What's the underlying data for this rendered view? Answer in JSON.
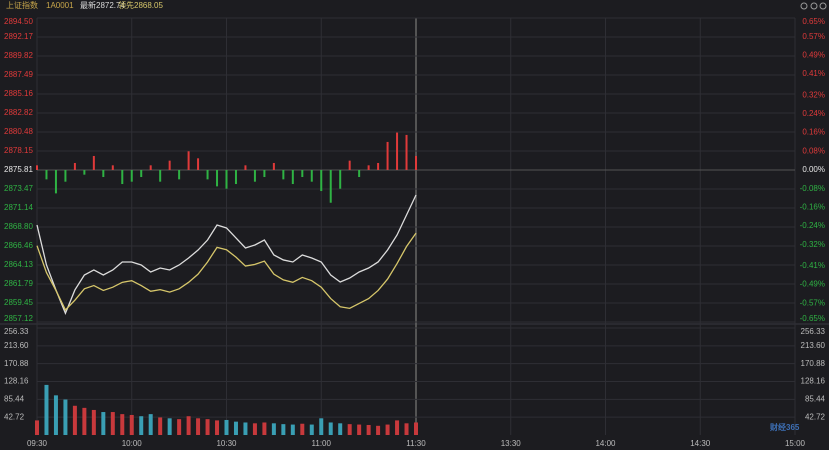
{
  "header": {
    "name": "上证指数",
    "code": "1A0001",
    "latest": "最新2872.74",
    "lead": "领先2868.05"
  },
  "watermark": "财经365",
  "chart_data": [
    {
      "type": "line",
      "x": [
        "09:30",
        "09:33",
        "09:36",
        "09:39",
        "09:42",
        "09:45",
        "09:48",
        "09:51",
        "09:54",
        "09:57",
        "10:00",
        "10:03",
        "10:06",
        "10:09",
        "10:12",
        "10:15",
        "10:18",
        "10:21",
        "10:24",
        "10:27",
        "10:30",
        "10:33",
        "10:36",
        "10:39",
        "10:42",
        "10:45",
        "10:48",
        "10:51",
        "10:54",
        "10:57",
        "11:00",
        "11:03",
        "11:06",
        "11:09",
        "11:12",
        "11:15",
        "11:18",
        "11:21",
        "11:24",
        "11:27",
        "11:30"
      ],
      "series": [
        {
          "color": "#dcdcdc",
          "values": [
            2869.05,
            2864.13,
            2861.06,
            2858.2,
            2861.06,
            2862.9,
            2863.52,
            2862.9,
            2863.52,
            2864.5,
            2864.5,
            2864.13,
            2863.27,
            2863.76,
            2863.52,
            2864.13,
            2864.99,
            2865.97,
            2867.2,
            2869.05,
            2868.68,
            2867.45,
            2866.22,
            2866.59,
            2867.2,
            2865.36,
            2864.75,
            2864.5,
            2865.36,
            2864.99,
            2864.5,
            2862.9,
            2862.04,
            2862.53,
            2863.27,
            2863.76,
            2864.5,
            2865.97,
            2867.82,
            2870.28,
            2872.74
          ]
        },
        {
          "color": "#d6c66a",
          "values": [
            2866.5,
            2863.2,
            2861.0,
            2858.6,
            2859.8,
            2861.2,
            2861.6,
            2861.0,
            2861.4,
            2862.0,
            2862.2,
            2861.6,
            2860.9,
            2861.1,
            2860.8,
            2861.2,
            2862.0,
            2863.0,
            2864.5,
            2866.3,
            2866.0,
            2865.1,
            2864.0,
            2864.2,
            2864.6,
            2863.0,
            2862.3,
            2862.0,
            2862.6,
            2862.2,
            2861.4,
            2860.0,
            2859.0,
            2858.8,
            2859.4,
            2860.0,
            2861.0,
            2862.4,
            2864.3,
            2866.4,
            2868.05
          ]
        }
      ],
      "bars": {
        "axis": "y2",
        "up_color": "#e03a3a",
        "down_color": "#2fb344",
        "values": [
          0.02,
          -0.04,
          -0.1,
          -0.05,
          0.03,
          -0.02,
          0.06,
          -0.03,
          0.02,
          -0.06,
          -0.05,
          -0.03,
          0.02,
          -0.05,
          0.04,
          -0.04,
          0.08,
          0.05,
          -0.04,
          -0.07,
          -0.08,
          -0.06,
          0.02,
          -0.05,
          -0.03,
          0.03,
          -0.04,
          -0.06,
          -0.03,
          -0.05,
          -0.09,
          -0.14,
          -0.08,
          0.04,
          -0.03,
          0.02,
          0.03,
          0.12,
          0.16,
          0.15,
          0.06
        ]
      },
      "ylim": [
        2857.12,
        2894.5
      ],
      "yticks": [
        {
          "value": 2894.5,
          "label": "2894.50"
        },
        2892.17,
        2889.82,
        2887.49,
        2885.16,
        2882.82,
        2880.48,
        2878.15,
        2875.81,
        2873.47,
        2871.14,
        {
          "value": 2868.8,
          "label": "2868.80"
        },
        2866.46,
        2864.13,
        2861.79,
        2859.45,
        2857.12
      ],
      "y2lim": [
        -0.65,
        0.65
      ],
      "y2ticks": [
        {
          "value": 0.65,
          "label": "0.65%"
        },
        {
          "value": 0.57,
          "label": "0.57%"
        },
        {
          "value": 0.49,
          "label": "0.49%"
        },
        {
          "value": 0.41,
          "label": "0.41%"
        },
        {
          "value": 0.32,
          "label": "0.32%"
        },
        {
          "value": 0.24,
          "label": "0.24%"
        },
        {
          "value": 0.16,
          "label": "0.16%"
        },
        {
          "value": 0.08,
          "label": "0.08%"
        },
        {
          "value": 0,
          "label": "0.00%"
        },
        {
          "value": -0.08,
          "label": "-0.08%"
        },
        {
          "value": -0.16,
          "label": "-0.16%"
        },
        {
          "value": -0.24,
          "label": "-0.24%"
        },
        {
          "value": -0.32,
          "label": "-0.32%"
        },
        {
          "value": -0.41,
          "label": "-0.41%"
        },
        {
          "value": -0.49,
          "label": "-0.49%"
        },
        {
          "value": -0.57,
          "label": "-0.57%"
        },
        {
          "value": -0.65,
          "label": "-0.65%"
        }
      ],
      "xticks": [
        "09:30",
        "10:00",
        "10:30",
        "11:00",
        "11:30",
        "13:30",
        "14:00",
        "14:30",
        "15:00"
      ],
      "grid": true
    },
    {
      "type": "bar",
      "up_color": "#c8393c",
      "down_color": "#3a9fb4",
      "values": [
        35,
        120,
        95,
        85,
        70,
        65,
        60,
        55,
        55,
        50,
        48,
        45,
        50,
        42,
        40,
        38,
        45,
        40,
        38,
        35,
        36,
        32,
        30,
        28,
        30,
        28,
        26,
        25,
        27,
        25,
        40,
        30,
        28,
        26,
        25,
        24,
        22,
        25,
        35,
        28,
        30
      ],
      "ylim": [
        0,
        256.33
      ],
      "yticks": [
        256.33,
        {
          "value": 213.6,
          "label": "213.60"
        },
        170.88,
        128.16,
        85.44,
        42.72
      ],
      "grid": true
    }
  ]
}
